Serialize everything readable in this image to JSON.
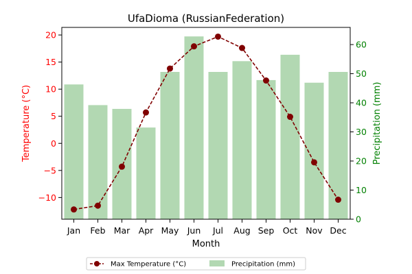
{
  "chart_data": {
    "type": "bar+line",
    "title": "UfaDioma (RussianFederation)",
    "xlabel": "Month",
    "categories": [
      "Jan",
      "Feb",
      "Mar",
      "Apr",
      "May",
      "Jun",
      "Jul",
      "Aug",
      "Sep",
      "Oct",
      "Nov",
      "Dec"
    ],
    "series": [
      {
        "name": "Max Temperature (°C)",
        "kind": "line",
        "axis": "left",
        "color": "#800000",
        "values": [
          -12.2,
          -11.5,
          -4.3,
          5.7,
          13.8,
          17.9,
          19.7,
          17.6,
          11.6,
          4.9,
          -3.5,
          -10.4
        ]
      },
      {
        "name": "Precipitation (mm)",
        "kind": "bar",
        "axis": "right",
        "color": "#b2d8b2",
        "values": [
          46.3,
          39.2,
          37.9,
          31.5,
          50.6,
          62.8,
          50.6,
          54.3,
          47.8,
          56.5,
          46.9,
          50.6
        ]
      }
    ],
    "y_left": {
      "label": "Temperature (°C)",
      "color": "#ff0000",
      "ylim": [
        -14,
        21.4
      ],
      "ticks": [
        -10,
        -5,
        0,
        5,
        10,
        15,
        20
      ]
    },
    "y_right": {
      "label": "Precipitation (mm)",
      "color": "#008000",
      "ylim": [
        0,
        65.9
      ],
      "ticks": [
        0,
        10,
        20,
        30,
        40,
        50,
        60
      ]
    },
    "legend": {
      "placement": "bottom-center"
    },
    "grid": false
  }
}
